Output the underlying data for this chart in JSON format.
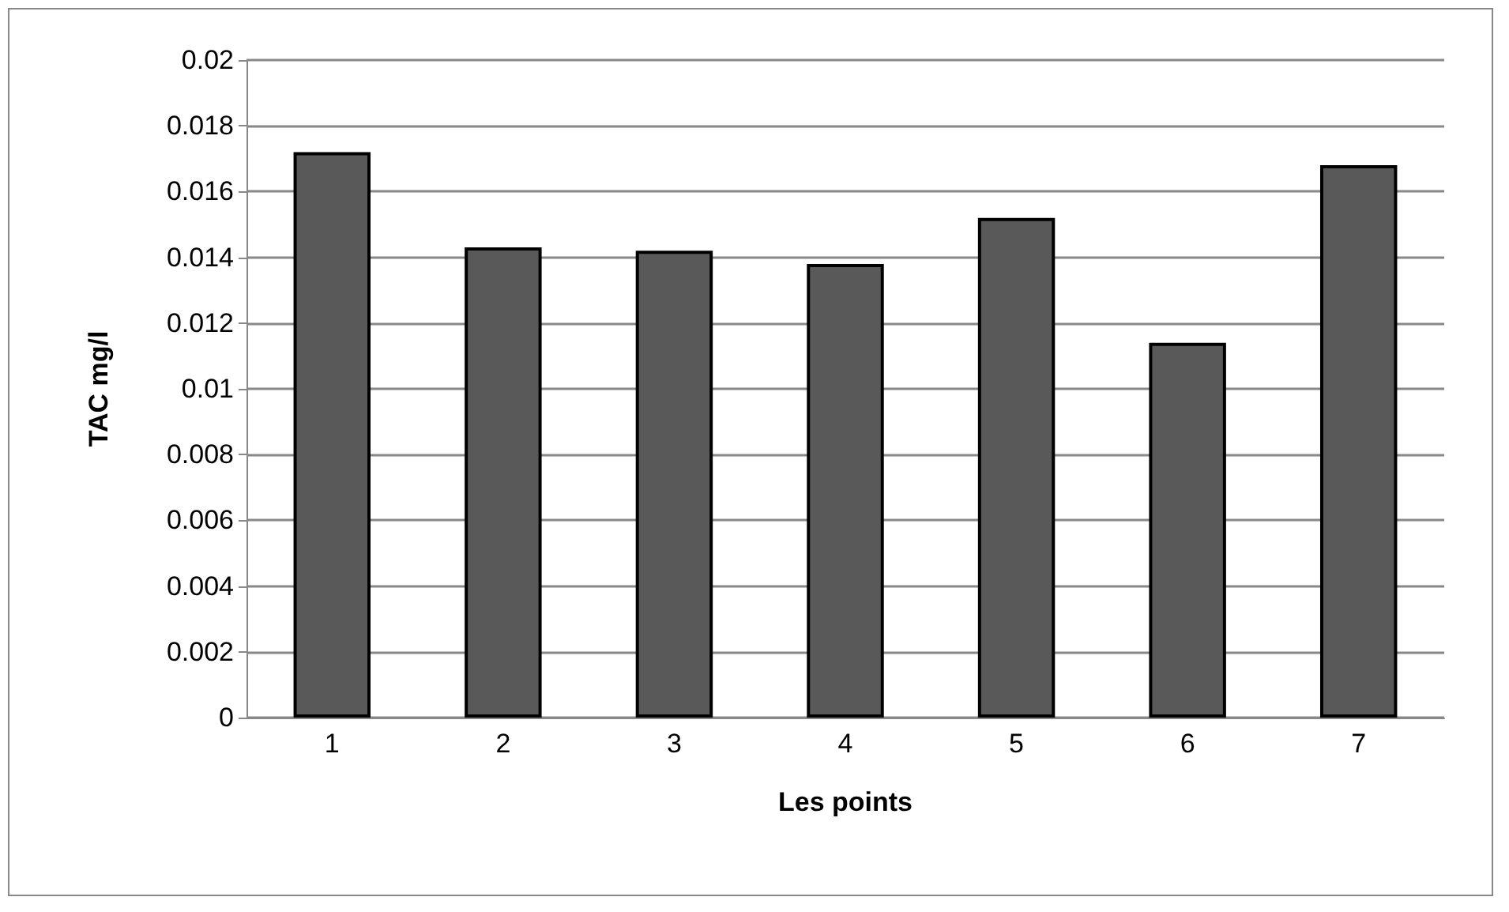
{
  "chart_data": {
    "type": "bar",
    "xlabel": "Les points",
    "ylabel": "TAC mg/l",
    "categories": [
      "1",
      "2",
      "3",
      "4",
      "5",
      "6",
      "7"
    ],
    "values": [
      0.0172,
      0.0143,
      0.0142,
      0.0138,
      0.0152,
      0.0114,
      0.0168
    ],
    "color": "#595959",
    "ylim": [
      0,
      0.02
    ],
    "yticks": [
      0,
      0.002,
      0.004,
      0.006,
      0.008,
      0.01,
      0.012,
      0.014,
      0.016,
      0.018,
      0.02
    ],
    "grid": "y"
  }
}
